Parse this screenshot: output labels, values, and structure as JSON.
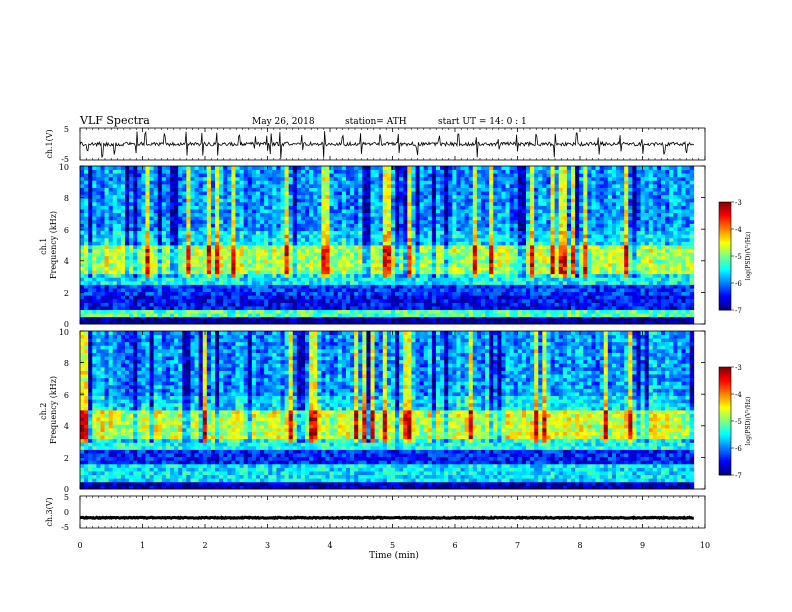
{
  "header": {
    "title": "VLF  Spectra",
    "date": "May 26, 2018",
    "station": "station= ATH",
    "start_ut": "start  UT  =   14: 0  : 1"
  },
  "chart_data": [
    {
      "type": "line",
      "panel": "ch1-waveform",
      "ylabel": "ch.1(V)",
      "ylim": [
        -5,
        5
      ],
      "yticks": [
        "5",
        "-5"
      ],
      "x_range_min": [
        0,
        9.82
      ],
      "baseline_level": 0.0,
      "noise_amplitude": 0.6,
      "impulsive_spike_times_min": [
        0.12,
        0.36,
        0.55,
        0.9,
        1.05,
        1.35,
        1.7,
        1.95,
        2.2,
        2.55,
        2.8,
        3.0,
        3.05,
        3.2,
        3.55,
        3.9,
        4.2,
        4.5,
        4.8,
        5.1,
        5.4,
        5.75,
        6.05,
        6.35,
        6.7,
        7.0,
        7.3,
        7.6,
        7.95,
        8.3,
        8.65,
        9.0,
        9.35,
        9.7
      ]
    },
    {
      "type": "heatmap",
      "panel": "ch1-spectrogram",
      "ylabel": "ch.1\nFrequency  (kHz)",
      "ylim": [
        0,
        10
      ],
      "yticks": [
        "0",
        "2",
        "4",
        "6",
        "8",
        "10"
      ],
      "x_range_min": [
        0,
        9.82
      ],
      "profile_log_psd_by_band": [
        {
          "f_khz": [
            0.0,
            0.4
          ],
          "log_psd": -7.0
        },
        {
          "f_khz": [
            0.4,
            1.0
          ],
          "log_psd": -5.2
        },
        {
          "f_khz": [
            1.0,
            1.8
          ],
          "log_psd": -6.5
        },
        {
          "f_khz": [
            1.8,
            2.6
          ],
          "log_psd": -6.3
        },
        {
          "f_khz": [
            2.6,
            3.2
          ],
          "log_psd": -5.5
        },
        {
          "f_khz": [
            3.2,
            5.0
          ],
          "log_psd": -4.8
        },
        {
          "f_khz": [
            5.0,
            6.0
          ],
          "log_psd": -5.6
        },
        {
          "f_khz": [
            6.0,
            10.0
          ],
          "log_psd": -5.9
        }
      ],
      "colorbar": {
        "label": "log(PSD)(V²/Hz)",
        "range": [
          -7,
          -3
        ],
        "ticks": [
          "-3",
          "-4",
          "-5",
          "-6",
          "-7"
        ]
      }
    },
    {
      "type": "heatmap",
      "panel": "ch2-spectrogram",
      "ylabel": "ch.2\nFrequency  (kHz)",
      "ylim": [
        0,
        10
      ],
      "yticks": [
        "0",
        "2",
        "4",
        "6",
        "8",
        "10"
      ],
      "x_range_min": [
        0,
        9.82
      ],
      "profile_log_psd_by_band": [
        {
          "f_khz": [
            0.0,
            0.4
          ],
          "log_psd": -6.8
        },
        {
          "f_khz": [
            0.4,
            1.6
          ],
          "log_psd": -5.6
        },
        {
          "f_khz": [
            1.6,
            2.6
          ],
          "log_psd": -6.4
        },
        {
          "f_khz": [
            2.6,
            3.2
          ],
          "log_psd": -5.4
        },
        {
          "f_khz": [
            3.2,
            5.0
          ],
          "log_psd": -4.7
        },
        {
          "f_khz": [
            5.0,
            6.0
          ],
          "log_psd": -5.6
        },
        {
          "f_khz": [
            6.0,
            10.0
          ],
          "log_psd": -5.9
        }
      ],
      "colorbar": {
        "label": "log(PSD)(V²/Hz)",
        "range": [
          -7,
          -3
        ],
        "ticks": [
          "-3",
          "-4",
          "-5",
          "-6",
          "-7"
        ]
      }
    },
    {
      "type": "line",
      "panel": "ch3-waveform",
      "ylabel": "ch.3(V)",
      "ylim": [
        -5,
        5
      ],
      "yticks": [
        "5",
        "0",
        "-5"
      ],
      "x_range_min": [
        0,
        9.82
      ],
      "baseline_level": -1.8,
      "noise_amplitude": 0.15
    }
  ],
  "x_axis": {
    "xlabel": "Time  (min)",
    "xlim": [
      0,
      10
    ],
    "ticks": [
      "0",
      "1",
      "2",
      "3",
      "4",
      "5",
      "6",
      "7",
      "8",
      "9",
      "10"
    ]
  },
  "colors": {
    "jet": [
      "#00007f",
      "#0000ff",
      "#007fff",
      "#00ffff",
      "#7fff7f",
      "#ffff00",
      "#ff7f00",
      "#ff0000",
      "#7f0000"
    ],
    "frame": "#000000",
    "background": "#ffffff"
  }
}
